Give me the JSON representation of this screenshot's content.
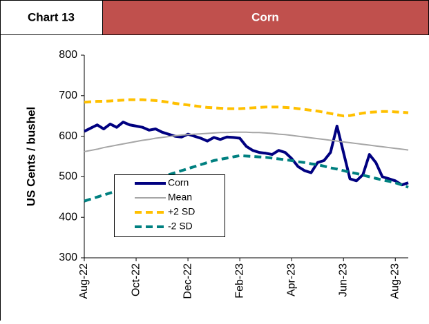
{
  "chart_data": {
    "type": "line",
    "label": "Chart 13",
    "title": "Corn",
    "y_label": "US Cents / bushel",
    "categories": [
      "Aug-22",
      null,
      null,
      null,
      null,
      null,
      null,
      null,
      "Oct-22",
      null,
      null,
      null,
      null,
      null,
      null,
      null,
      "Dec-22",
      null,
      null,
      null,
      null,
      null,
      null,
      null,
      "Feb-23",
      null,
      null,
      null,
      null,
      null,
      null,
      null,
      "Apr-23",
      null,
      null,
      null,
      null,
      null,
      null,
      null,
      "Jun-23",
      null,
      null,
      null,
      null,
      null,
      null,
      null,
      "Aug-23",
      null,
      null
    ],
    "series": [
      {
        "name": "Corn",
        "color": "#000080",
        "values": [
          612,
          620,
          628,
          618,
          630,
          622,
          635,
          628,
          625,
          622,
          615,
          618,
          610,
          605,
          600,
          598,
          605,
          600,
          595,
          588,
          597,
          592,
          598,
          597,
          595,
          575,
          565,
          560,
          558,
          555,
          565,
          560,
          545,
          525,
          515,
          510,
          535,
          540,
          560,
          625,
          560,
          495,
          490,
          505,
          555,
          535,
          500,
          495,
          490,
          480,
          485
        ]
      },
      {
        "name": "Mean",
        "color": "#a6a6a6",
        "values": [
          562,
          565,
          568,
          572,
          575,
          578,
          581,
          584,
          587,
          590,
          592,
          595,
          597,
          599,
          601,
          603,
          604,
          605,
          606,
          607,
          608,
          609,
          609,
          610,
          610,
          610,
          609,
          609,
          608,
          607,
          605,
          604,
          602,
          600,
          598,
          596,
          594,
          592,
          590,
          588,
          586,
          584,
          582,
          580,
          578,
          576,
          574,
          572,
          570,
          568,
          566
        ]
      },
      {
        "name": "+2 SD",
        "color": "#ffc000",
        "values": [
          684,
          685,
          686,
          686,
          687,
          688,
          689,
          690,
          690,
          690,
          689,
          688,
          686,
          684,
          681,
          679,
          677,
          675,
          673,
          671,
          670,
          669,
          668,
          668,
          668,
          669,
          670,
          671,
          672,
          672,
          672,
          671,
          670,
          668,
          666,
          664,
          662,
          659,
          656,
          653,
          650,
          651,
          654,
          657,
          659,
          660,
          661,
          661,
          660,
          659,
          658
        ]
      },
      {
        "name": "-2 SD",
        "color": "#008080",
        "values": [
          440,
          445,
          450,
          455,
          460,
          465,
          470,
          475,
          480,
          485,
          490,
          495,
          500,
          505,
          510,
          515,
          520,
          525,
          530,
          535,
          540,
          543,
          546,
          549,
          552,
          551,
          550,
          549,
          548,
          546,
          544,
          542,
          540,
          537,
          535,
          532,
          530,
          526,
          522,
          519,
          515,
          511,
          508,
          504,
          500,
          496,
          492,
          489,
          485,
          480,
          474
        ]
      }
    ],
    "ylim": [
      300,
      800
    ],
    "yticks": [
      300,
      400,
      500,
      600,
      700,
      800
    ]
  }
}
